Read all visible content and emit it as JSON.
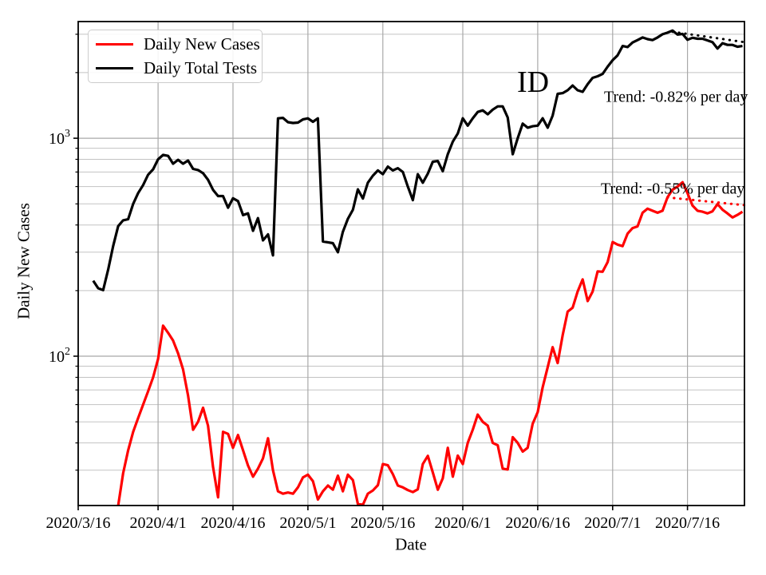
{
  "figure": {
    "state_label": "ID",
    "xlabel": "Date",
    "ylabel": "Daily New Cases"
  },
  "legend": {
    "items": [
      {
        "label": "Daily New Cases",
        "color": "#ff0000"
      },
      {
        "label": "Daily Total Tests",
        "color": "#000000"
      }
    ]
  },
  "annotations": {
    "tests_trend": "Trend: -0.82% per day",
    "cases_trend": "Trend: -0.55% per day"
  },
  "chart_data": {
    "type": "line",
    "title": "ID",
    "xlabel": "Date",
    "ylabel": "Daily New Cases",
    "x_unit": "days since 2020/3/16",
    "x_axis": {
      "tick_labels": [
        "2020/3/16",
        "2020/4/1",
        "2020/4/16",
        "2020/5/1",
        "2020/5/16",
        "2020/6/1",
        "2020/6/16",
        "2020/7/1",
        "2020/7/16"
      ],
      "tick_days": [
        0,
        16,
        31,
        46,
        61,
        77,
        92,
        107,
        122
      ],
      "domain_days": [
        0,
        133.4
      ]
    },
    "y_axis": {
      "scale": "log",
      "domain": [
        20.65,
        3430
      ],
      "major_ticks": [
        {
          "value": 100,
          "label_base": "10",
          "label_exp": "2"
        },
        {
          "value": 1000,
          "label_base": "10",
          "label_exp": "3"
        }
      ],
      "minor_ticks": [
        30,
        40,
        50,
        60,
        70,
        80,
        90,
        200,
        300,
        400,
        500,
        600,
        700,
        800,
        900,
        2000,
        3000
      ]
    },
    "colors": {
      "cases": "#ff0000",
      "tests": "#000000",
      "grid_major": "#a8a8a8",
      "grid_minor": "#c3c3c3",
      "spine": "#000000"
    },
    "series": [
      {
        "name": "Daily Total Tests",
        "color": "#000000",
        "style": "solid",
        "start_day": 3,
        "step": 1,
        "values": [
          222,
          205,
          201,
          250,
          320,
          395,
          420,
          425,
          500,
          560,
          610,
          680,
          720,
          800,
          838,
          830,
          764,
          796,
          764,
          790,
          723,
          715,
          691,
          645,
          580,
          543,
          543,
          480,
          530,
          515,
          444,
          452,
          376,
          430,
          340,
          362,
          290,
          1234,
          1240,
          1185,
          1175,
          1180,
          1220,
          1234,
          1190,
          1234,
          336,
          333,
          330,
          300,
          372,
          427,
          470,
          583,
          529,
          625,
          673,
          712,
          684,
          741,
          712,
          729,
          700,
          600,
          520,
          684,
          625,
          688,
          780,
          786,
          706,
          845,
          965,
          1051,
          1235,
          1143,
          1235,
          1320,
          1342,
          1288,
          1353,
          1400,
          1400,
          1245,
          845,
          1000,
          1167,
          1118,
          1135,
          1143,
          1235,
          1118,
          1270,
          1598,
          1611,
          1660,
          1745,
          1660,
          1633,
          1771,
          1893,
          1925,
          1972,
          2129,
          2280,
          2400,
          2650,
          2620,
          2750,
          2820,
          2900,
          2850,
          2820,
          2900,
          3000,
          3050,
          3120,
          2990,
          3010,
          2830,
          2890,
          2860,
          2860,
          2810,
          2760,
          2580,
          2730,
          2680,
          2680,
          2630,
          2650
        ]
      },
      {
        "name": "Daily New Cases",
        "color": "#ff0000",
        "style": "solid",
        "start_day": 8,
        "step": 1,
        "values": [
          20.6,
          29,
          37,
          45,
          52,
          60,
          69,
          80,
          97,
          138,
          128,
          118,
          103,
          87,
          66,
          46,
          50,
          58,
          48,
          31,
          22.5,
          45,
          44,
          38,
          43.5,
          37,
          31.5,
          28,
          30.5,
          34,
          42,
          30,
          24,
          23.4,
          23.7,
          23.4,
          25,
          27.8,
          28.6,
          26.7,
          22,
          24,
          25.5,
          24.4,
          28.3,
          24,
          28.6,
          27,
          21,
          20.8,
          23.4,
          24.2,
          25.6,
          32,
          31.6,
          28.8,
          25.5,
          25,
          24.3,
          23.8,
          24.5,
          32,
          34.9,
          29.3,
          24.4,
          27.5,
          38,
          28,
          35,
          32,
          40,
          46,
          54,
          50,
          48,
          40,
          39,
          30.5,
          30.2,
          42.5,
          40,
          36.5,
          38,
          49,
          55.4,
          72,
          89,
          110,
          93,
          125,
          160,
          167,
          198,
          225,
          179,
          198,
          245,
          244,
          270,
          334,
          325,
          320,
          365,
          387,
          394,
          455,
          475,
          465,
          455,
          465,
          536,
          581,
          600,
          628,
          560,
          491,
          465,
          460,
          452,
          462,
          499,
          470,
          452,
          433,
          445,
          460
        ]
      },
      {
        "name": "Cases trend (-0.55% per day)",
        "color": "#ff0000",
        "style": "dotted",
        "x_days": [
          118,
          133.4
        ],
        "values": [
          535,
          493
        ]
      },
      {
        "name": "Tests trend (-0.82% per day)",
        "color": "#000000",
        "style": "dotted",
        "x_days": [
          119,
          133.4
        ],
        "values": [
          3080,
          2760
        ]
      }
    ]
  }
}
